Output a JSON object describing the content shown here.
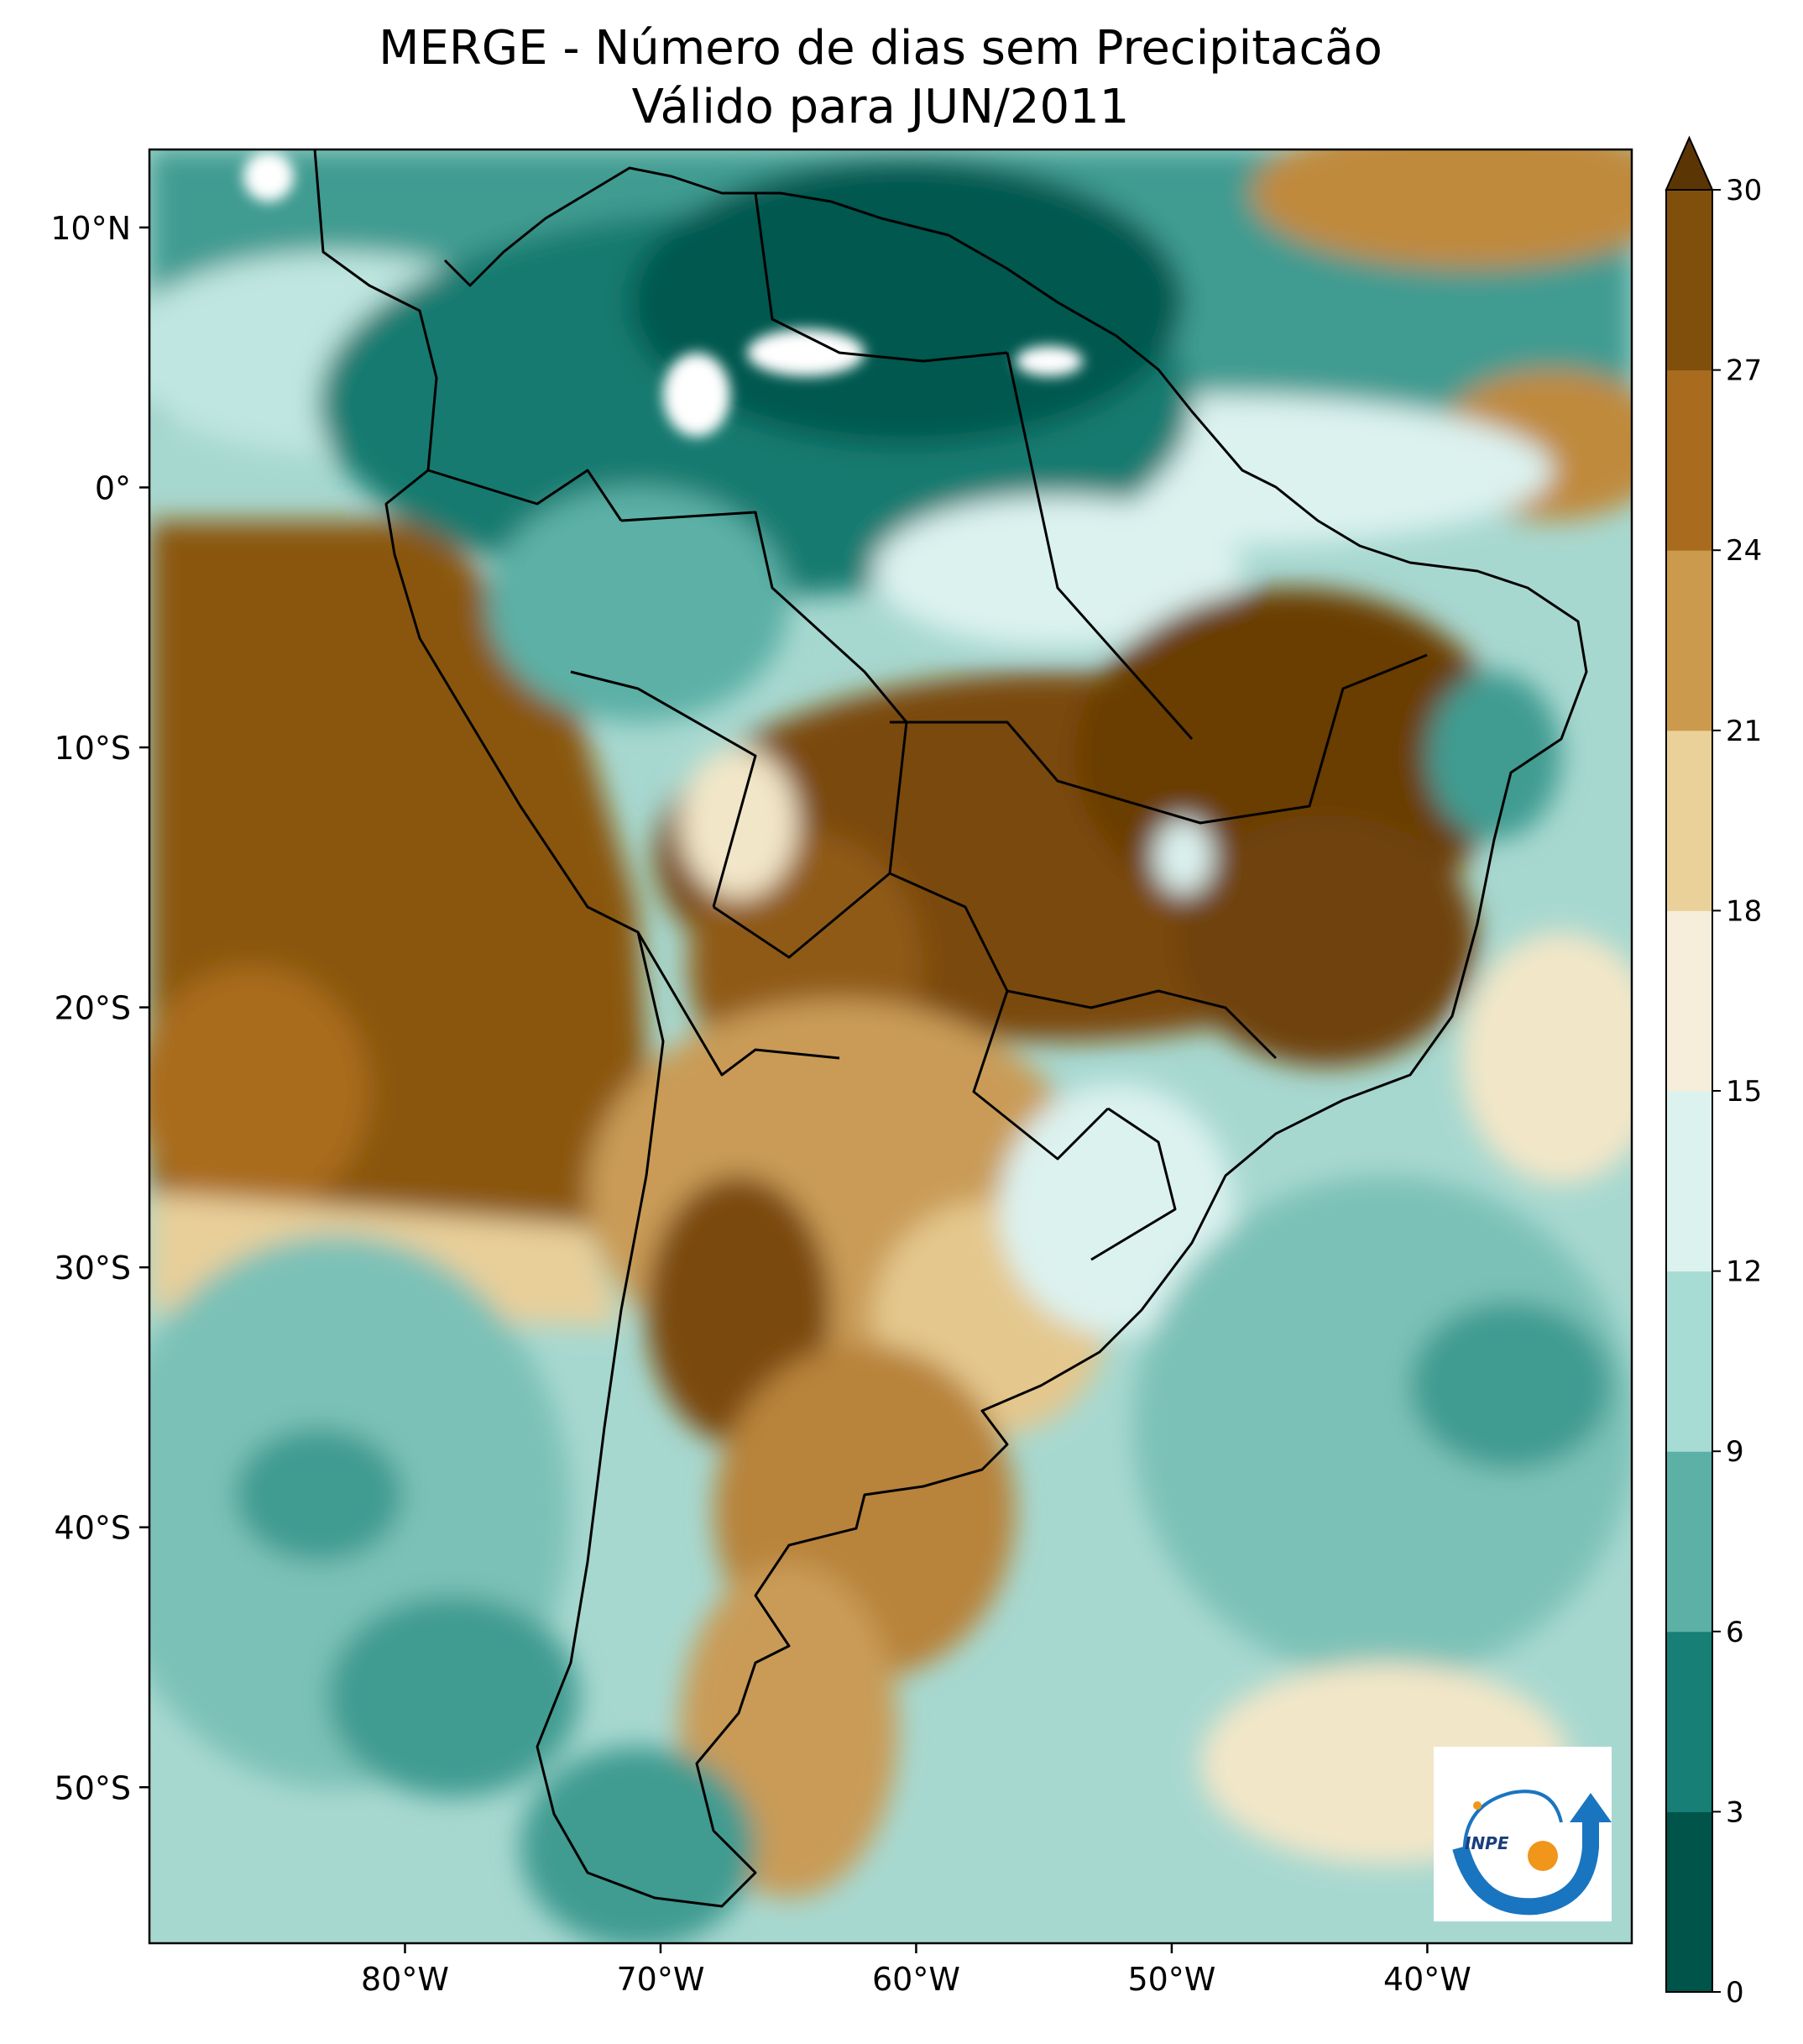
{
  "title": {
    "line1": "MERGE - Número de dias sem Precipitacão",
    "line2": "Válido para JUN/2011"
  },
  "map": {
    "region": "South America",
    "lon_range": [
      -90,
      -32
    ],
    "lat_range": [
      -56,
      13
    ],
    "lat_ticks": [
      {
        "value": 10,
        "label": "10°N"
      },
      {
        "value": 0,
        "label": "0°"
      },
      {
        "value": -10,
        "label": "10°S"
      },
      {
        "value": -20,
        "label": "20°S"
      },
      {
        "value": -30,
        "label": "30°S"
      },
      {
        "value": -40,
        "label": "40°S"
      },
      {
        "value": -50,
        "label": "50°S"
      }
    ],
    "lon_ticks": [
      {
        "value": -80,
        "label": "80°W"
      },
      {
        "value": -70,
        "label": "70°W"
      },
      {
        "value": -60,
        "label": "60°W"
      },
      {
        "value": -50,
        "label": "50°W"
      },
      {
        "value": -40,
        "label": "40°W"
      }
    ],
    "ocean_fill": "#a7d8d0",
    "no_data_color": "#ffffff"
  },
  "colorbar": {
    "levels": [
      0,
      3,
      6,
      9,
      12,
      15,
      18,
      21,
      24,
      27,
      30
    ],
    "labels": [
      "0",
      "3",
      "6",
      "9",
      "12",
      "15",
      "18",
      "21",
      "24",
      "27",
      "30"
    ],
    "colors": [
      "#01544a",
      "#177f76",
      "#5cb0a6",
      "#a7dcd4",
      "#dcf2ef",
      "#f6eedb",
      "#ead19a",
      "#cc9a4c",
      "#a96c1f",
      "#804f0c",
      "#5c3505"
    ],
    "extend": "max"
  },
  "logo": {
    "text": "INPE",
    "arrow_color": "#1a75c0",
    "dot_color": "#f0961b",
    "icon": "inpe-logo-icon"
  }
}
